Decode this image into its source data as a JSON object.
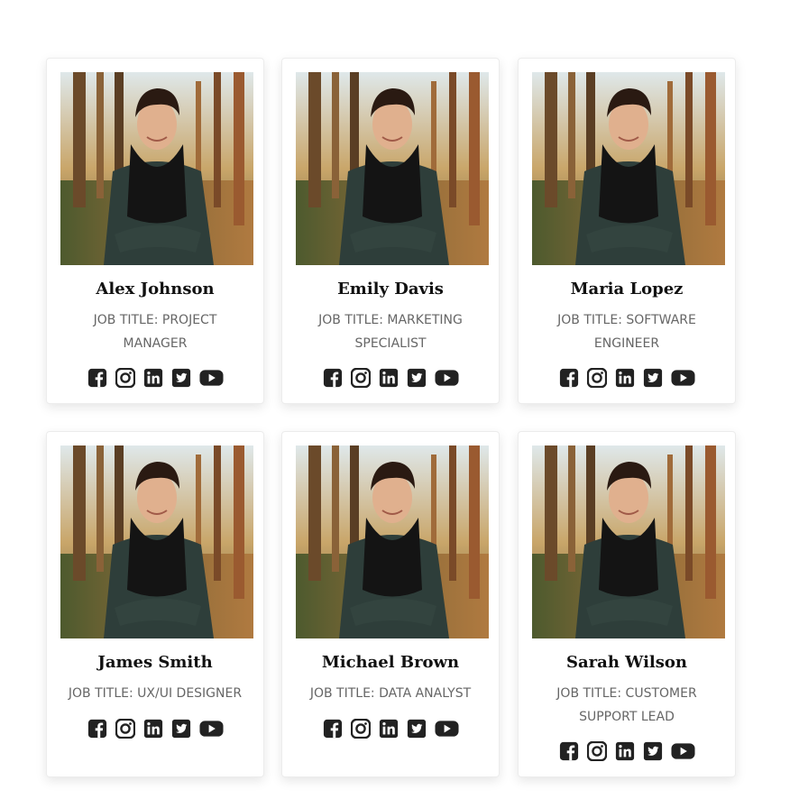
{
  "team": [
    {
      "name": "Alex Johnson",
      "job_title": "Job Title: Project Manager"
    },
    {
      "name": "Emily Davis",
      "job_title": "Job Title: Marketing Specialist"
    },
    {
      "name": "Maria Lopez",
      "job_title": "Job Title: Software Engineer"
    },
    {
      "name": "James Smith",
      "job_title": "Job Title: UX/UI Designer"
    },
    {
      "name": "Michael Brown",
      "job_title": "Job Title: Data Analyst"
    },
    {
      "name": "Sarah Wilson",
      "job_title": "Job Title: Customer Support Lead"
    }
  ],
  "social_icons": [
    "facebook-icon",
    "instagram-icon",
    "linkedin-icon",
    "twitter-icon",
    "youtube-icon"
  ],
  "colors": {
    "icon": "#222222",
    "name": "#111111",
    "job": "#666666"
  }
}
